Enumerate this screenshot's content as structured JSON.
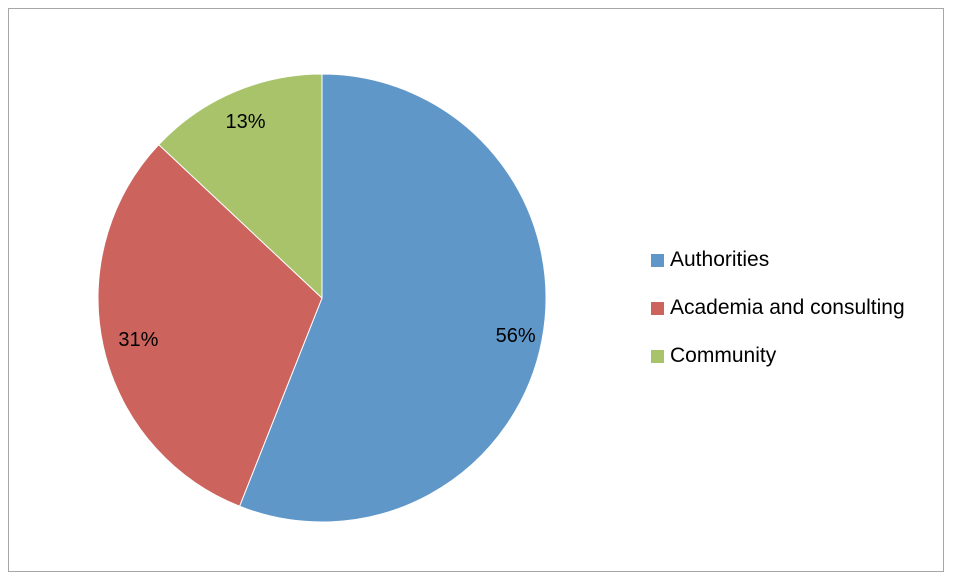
{
  "chart_data": {
    "type": "pie",
    "title": "",
    "categories": [
      "Authorities",
      "Academia and consulting",
      "Community"
    ],
    "values": [
      56,
      31,
      13
    ],
    "labels": [
      "56%",
      "31%",
      "13%"
    ],
    "colors": [
      "#6097c9",
      "#cc635d",
      "#a8c36a"
    ],
    "legend_position": "right",
    "start_angle": "12 o'clock, clockwise"
  }
}
